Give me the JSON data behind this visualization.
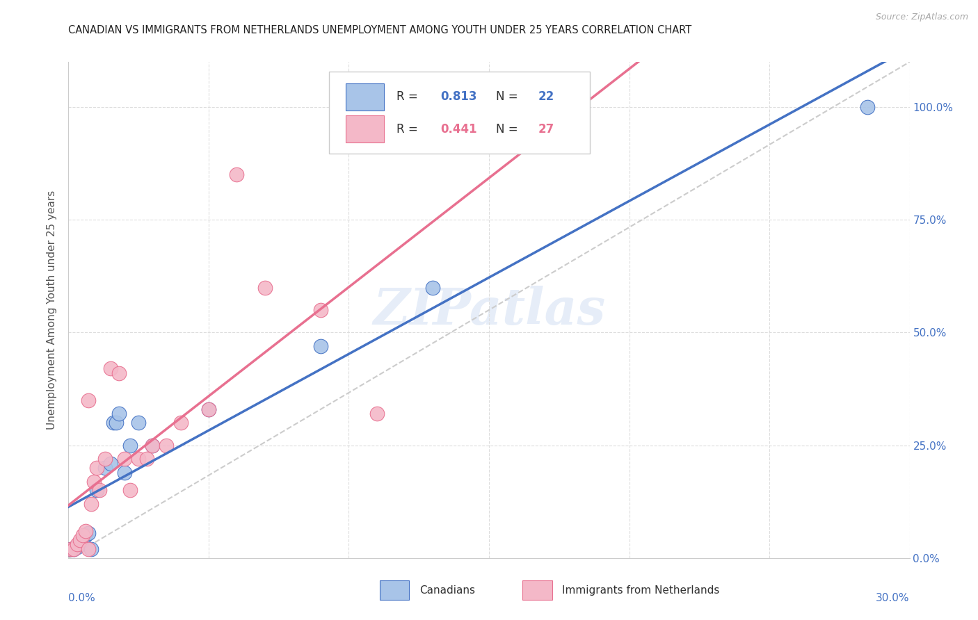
{
  "title": "CANADIAN VS IMMIGRANTS FROM NETHERLANDS UNEMPLOYMENT AMONG YOUTH UNDER 25 YEARS CORRELATION CHART",
  "source": "Source: ZipAtlas.com",
  "ylabel": "Unemployment Among Youth under 25 years",
  "right_yticklabels": [
    "0.0%",
    "25.0%",
    "50.0%",
    "75.0%",
    "100.0%"
  ],
  "blue_R": 0.813,
  "blue_N": 22,
  "pink_R": 0.441,
  "pink_N": 27,
  "blue_scatter_color": "#a8c4e8",
  "blue_line_color": "#4472c4",
  "pink_scatter_color": "#f4b8c8",
  "pink_line_color": "#e87090",
  "diag_color": "#cccccc",
  "legend_label_blue": "Canadians",
  "legend_label_pink": "Immigrants from Netherlands",
  "watermark": "ZIPatlas",
  "blue_x": [
    0.001,
    0.002,
    0.003,
    0.004,
    0.005,
    0.006,
    0.007,
    0.008,
    0.01,
    0.013,
    0.015,
    0.016,
    0.017,
    0.018,
    0.02,
    0.022,
    0.025,
    0.03,
    0.05,
    0.09,
    0.13,
    0.285
  ],
  "blue_y": [
    0.02,
    0.02,
    0.025,
    0.03,
    0.04,
    0.05,
    0.055,
    0.02,
    0.15,
    0.2,
    0.21,
    0.3,
    0.3,
    0.32,
    0.19,
    0.25,
    0.3,
    0.25,
    0.33,
    0.47,
    0.6,
    1.0
  ],
  "pink_x": [
    0.001,
    0.002,
    0.003,
    0.004,
    0.005,
    0.006,
    0.007,
    0.007,
    0.008,
    0.009,
    0.01,
    0.011,
    0.013,
    0.015,
    0.018,
    0.02,
    0.022,
    0.025,
    0.028,
    0.03,
    0.035,
    0.04,
    0.05,
    0.06,
    0.07,
    0.09,
    0.11
  ],
  "pink_y": [
    0.02,
    0.02,
    0.03,
    0.04,
    0.05,
    0.06,
    0.02,
    0.35,
    0.12,
    0.17,
    0.2,
    0.15,
    0.22,
    0.42,
    0.41,
    0.22,
    0.15,
    0.22,
    0.22,
    0.25,
    0.25,
    0.3,
    0.33,
    0.85,
    0.6,
    0.55,
    0.32
  ],
  "xlim": [
    0,
    0.3
  ],
  "ylim": [
    0,
    1.1
  ],
  "xticks": [
    0.0,
    0.05,
    0.1,
    0.15,
    0.2,
    0.25,
    0.3
  ],
  "yticks": [
    0.0,
    0.25,
    0.5,
    0.75,
    1.0
  ]
}
